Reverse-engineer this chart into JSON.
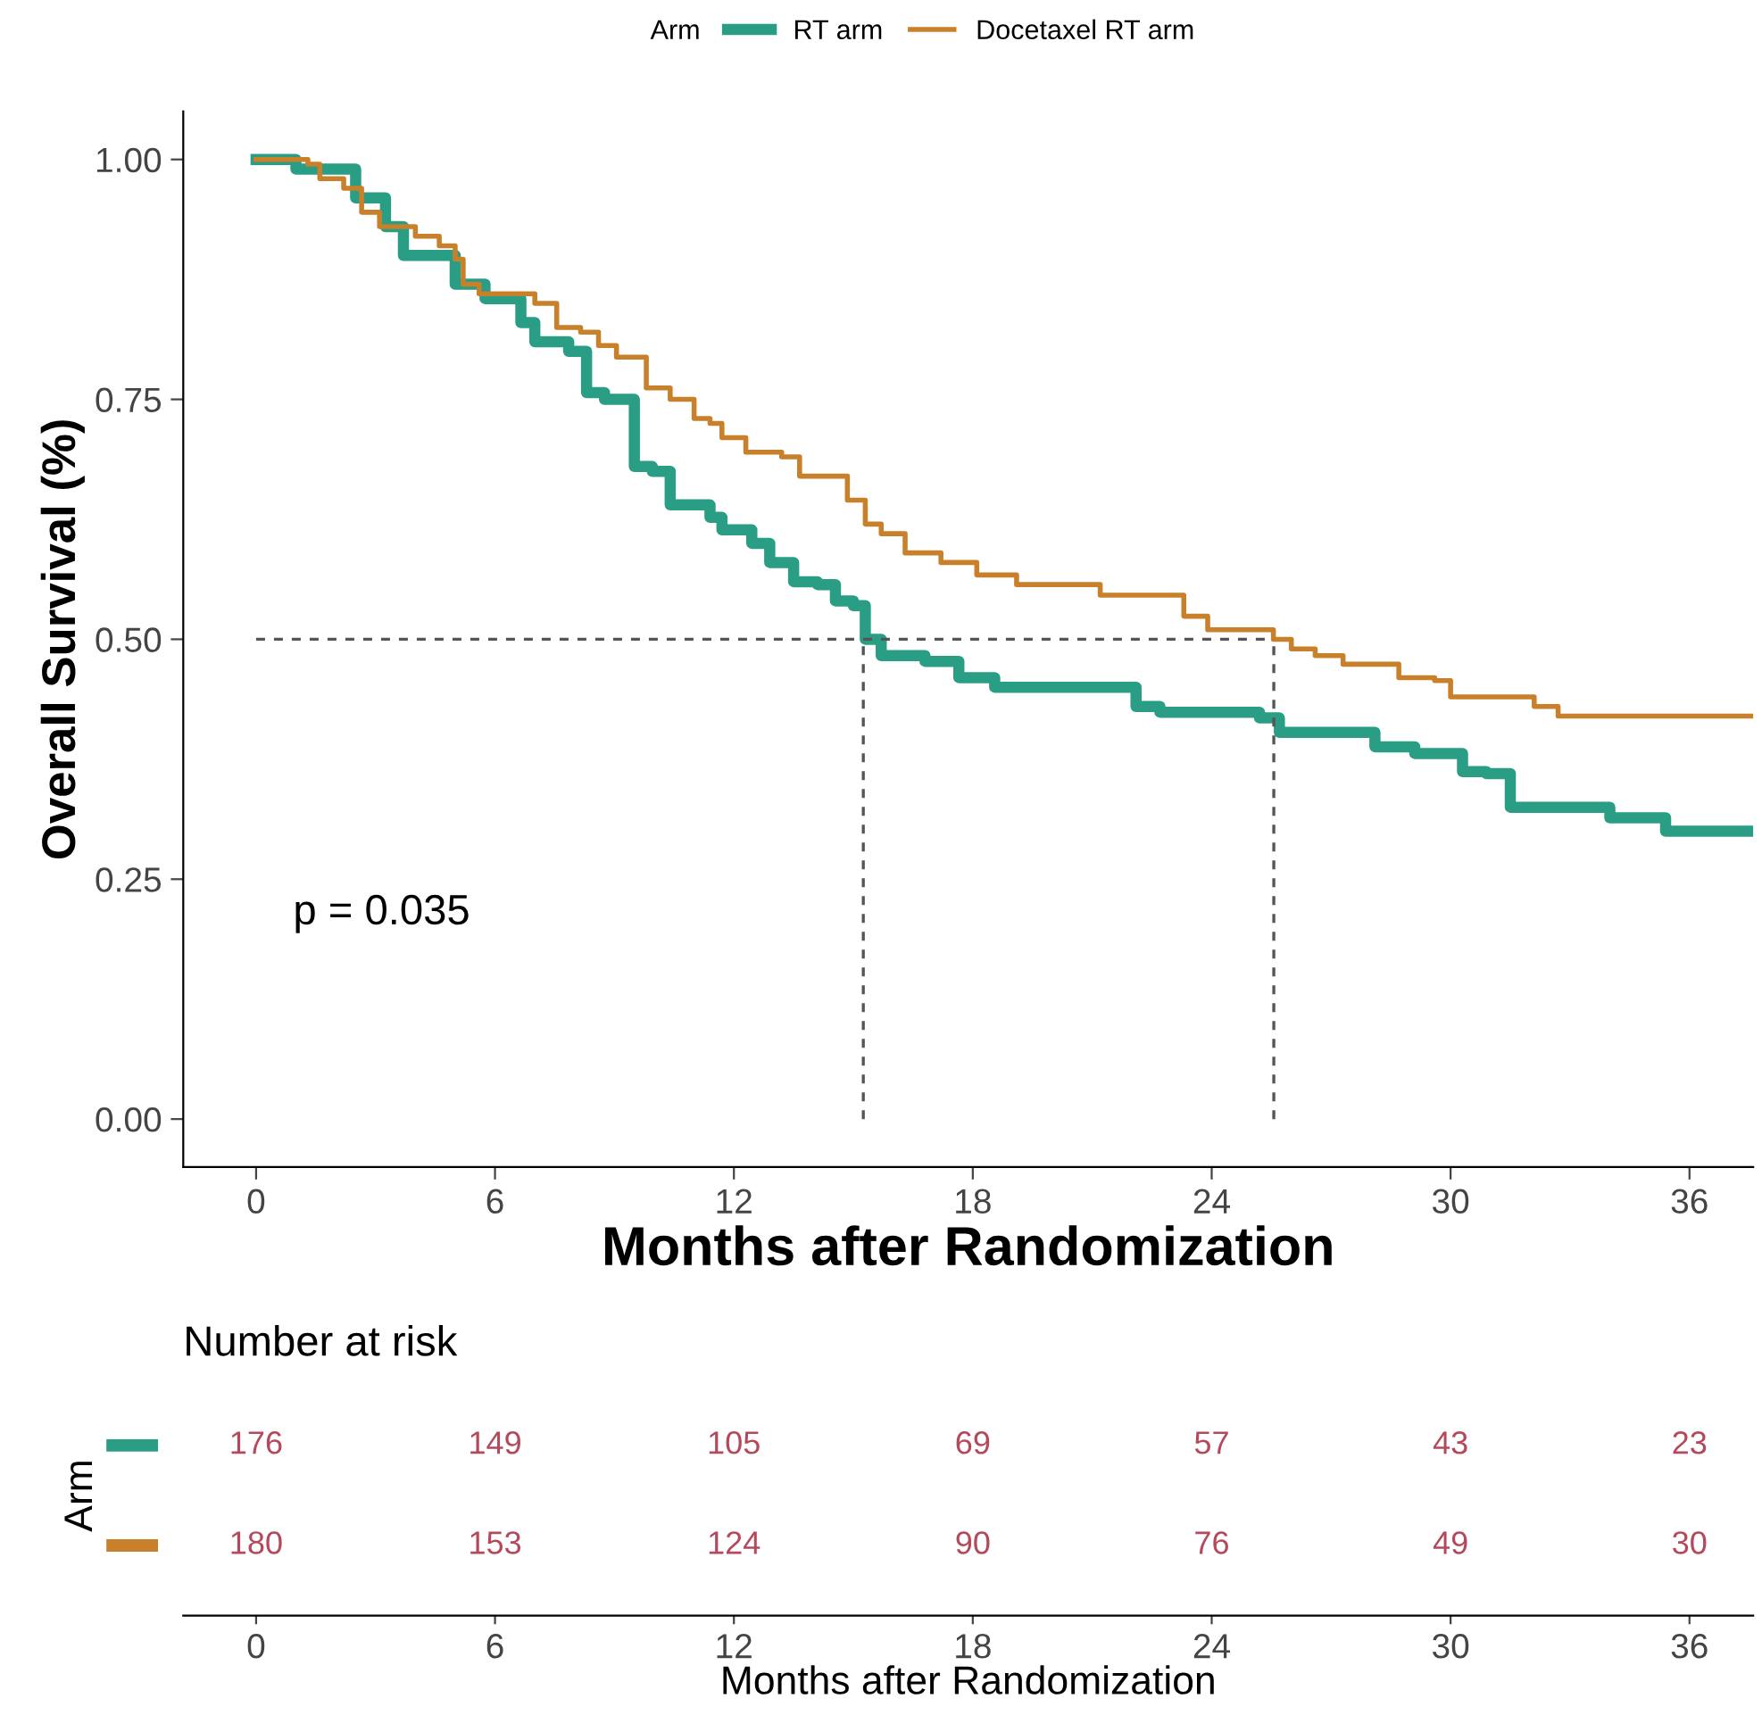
{
  "chart_data": [
    {
      "type": "step",
      "xlabel": "Months after Randomization",
      "ylabel": "Overall Survival (%)",
      "legend_title": "Arm",
      "legend": "top",
      "xlim": [
        -1.83,
        37.6
      ],
      "ylim": [
        -0.05,
        1.05
      ],
      "xticks": [
        0,
        6,
        12,
        18,
        24,
        30,
        36
      ],
      "yticks": [
        {
          "value": 0,
          "label": "0.00"
        },
        {
          "value": 0.25,
          "label": "0.25"
        },
        {
          "value": 0.5,
          "label": "0.50"
        },
        {
          "value": 0.75,
          "label": "0.75"
        },
        {
          "value": 1,
          "label": "1.00"
        }
      ],
      "grid": false,
      "annotations": [
        "p = 0.035"
      ],
      "ref_lines": [
        {
          "axis": "y",
          "value": 0.5,
          "line_style": "dashed"
        },
        {
          "axis": "x",
          "value": 15.25,
          "line_style": "dashed"
        },
        {
          "axis": "x",
          "value": 25.56,
          "line_style": "dashed"
        }
      ],
      "series": [
        {
          "name": "RT arm",
          "color": "#2a9d85",
          "x": [
            0,
            1.0,
            2.5,
            3.25,
            3.7,
            4.3,
            5.0,
            5.75,
            6.65,
            7.0,
            7.85,
            8.3,
            8.75,
            9.5,
            9.95,
            10.4,
            11.4,
            11.7,
            12.45,
            12.9,
            13.5,
            14.1,
            14.55,
            15.0,
            15.3,
            15.7,
            16.8,
            17.65,
            18.55,
            21.4,
            22.1,
            22.7,
            25.2,
            25.7,
            27.8,
            28.1,
            29.1,
            30.3,
            30.9,
            31.5,
            34.0,
            35.4,
            37.6
          ],
          "values": [
            1.0,
            0.99,
            0.96,
            0.93,
            0.9,
            0.9,
            0.87,
            0.855,
            0.83,
            0.81,
            0.8,
            0.757,
            0.75,
            0.68,
            0.675,
            0.64,
            0.627,
            0.614,
            0.6,
            0.58,
            0.56,
            0.557,
            0.54,
            0.535,
            0.5,
            0.483,
            0.477,
            0.46,
            0.45,
            0.45,
            0.43,
            0.424,
            0.418,
            0.403,
            0.403,
            0.388,
            0.381,
            0.362,
            0.36,
            0.325,
            0.314,
            0.3,
            0.3
          ]
        },
        {
          "name": "Docetaxel RT arm",
          "color": "#c8802a",
          "x": [
            0,
            1.3,
            1.6,
            2.2,
            2.65,
            3.1,
            4.0,
            4.6,
            5.0,
            5.2,
            5.6,
            7.0,
            7.55,
            8.15,
            8.6,
            9.05,
            9.8,
            10.4,
            11.0,
            11.4,
            11.7,
            12.3,
            13.2,
            13.65,
            14.85,
            15.3,
            15.7,
            16.3,
            17.2,
            18.1,
            19.1,
            21.2,
            23.3,
            23.9,
            25.55,
            26.0,
            26.6,
            27.3,
            28.7,
            29.6,
            30.0,
            32.1,
            32.7,
            37.6
          ],
          "values": [
            1.0,
            0.995,
            0.98,
            0.97,
            0.945,
            0.93,
            0.92,
            0.91,
            0.896,
            0.87,
            0.86,
            0.85,
            0.825,
            0.82,
            0.806,
            0.794,
            0.762,
            0.75,
            0.73,
            0.725,
            0.71,
            0.695,
            0.69,
            0.67,
            0.645,
            0.62,
            0.61,
            0.59,
            0.58,
            0.567,
            0.557,
            0.546,
            0.524,
            0.51,
            0.5,
            0.49,
            0.483,
            0.474,
            0.46,
            0.457,
            0.44,
            0.43,
            0.42,
            0.42
          ]
        }
      ]
    },
    {
      "type": "heatmap",
      "title": "Number at risk",
      "xlabel": "Months after Randomization",
      "ylabel": "Arm",
      "color": "#b5485a",
      "categories": [
        "0",
        "6",
        "12",
        "18",
        "24",
        "30",
        "36"
      ],
      "y_categories": [
        null,
        null
      ],
      "cells": [
        [
          176,
          149,
          105,
          69,
          57,
          43,
          23
        ],
        [
          180,
          153,
          124,
          90,
          76,
          49,
          30
        ]
      ],
      "data_labels": true
    }
  ]
}
